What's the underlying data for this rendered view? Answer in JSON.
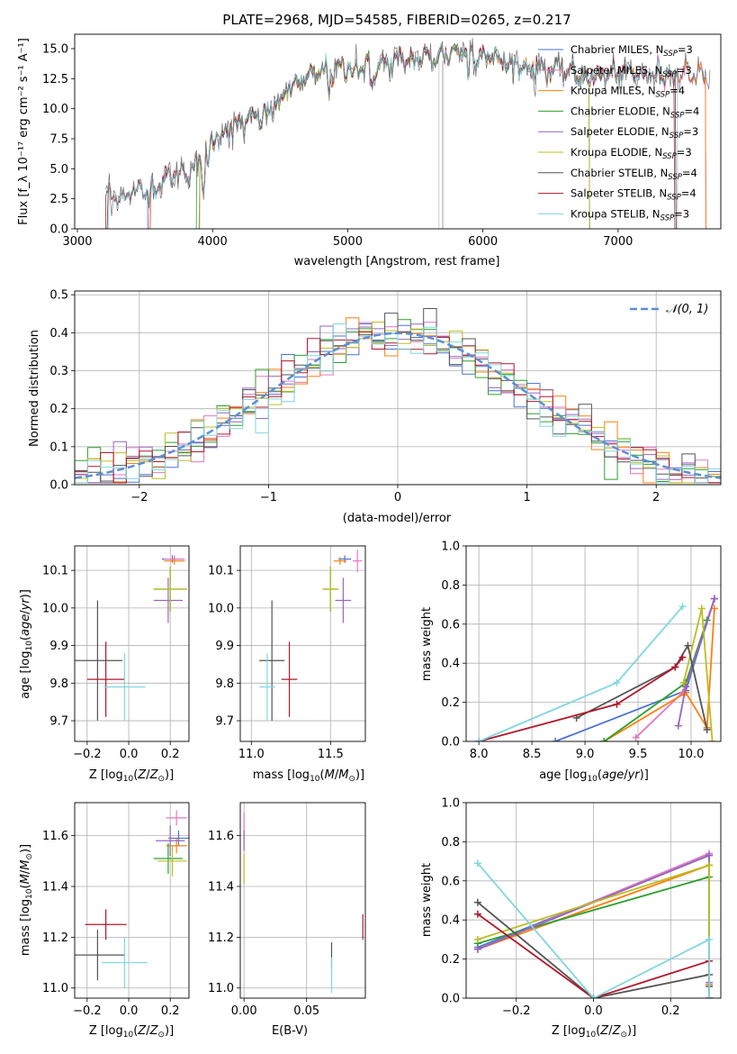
{
  "colors": {
    "chabrier_miles": "#4c72cf",
    "salpeter_miles": "#e377c2",
    "kroupa_miles": "#ff7f0e",
    "chabrier_elodie": "#2ca02c",
    "salpeter_elodie": "#9467bd",
    "kroupa_elodie": "#bcbd22",
    "chabrier_stelib": "#555555",
    "salpeter_stelib": "#b2182b",
    "kroupa_stelib": "#80d6e0",
    "gauss": "#5b8fd6"
  },
  "chart_data": [
    {
      "id": "spectrum",
      "type": "line",
      "title": "PLATE=2968, MJD=54585, FIBERID=0265, z=0.217",
      "xlabel": "wavelength [Angstrom, rest frame]",
      "ylabel": "Flux [f_λ 10⁻¹⁷ erg cm⁻² s⁻¹ A⁻¹]",
      "xlim": [
        2980,
        7760
      ],
      "ylim": [
        0,
        16.2
      ],
      "xticks": [
        "3000",
        "4000",
        "5000",
        "6000",
        "7000"
      ],
      "yticks": [
        "0.0",
        "2.5",
        "5.0",
        "7.5",
        "10.0",
        "12.5",
        "15.0"
      ],
      "series": [
        {
          "name": "Chabrier MILES, N_SSP=3"
        },
        {
          "name": "Salpeter MILES, N_SSP=3"
        },
        {
          "name": "Kroupa MILES, N_SSP=4"
        },
        {
          "name": "Chabrier ELODIE, N_SSP=4"
        },
        {
          "name": "Salpeter ELODIE, N_SSP=3"
        },
        {
          "name": "Kroupa ELODIE, N_SSP=3"
        },
        {
          "name": "Chabrier STELIB, N_SSP=4"
        },
        {
          "name": "Salpeter STELIB, N_SSP=4"
        },
        {
          "name": "Kroupa STELIB, N_SSP=3"
        }
      ],
      "continuum": {
        "x": [
          3200,
          3300,
          3500,
          3700,
          3900,
          4000,
          4200,
          4400,
          4600,
          4800,
          5000,
          5200,
          5400,
          5600,
          5800,
          6000,
          6200,
          6400,
          6600,
          6800,
          7000,
          7200,
          7400,
          7600
        ],
        "y": [
          2.5,
          2.8,
          3.2,
          4.4,
          5.2,
          7.6,
          8.7,
          9.5,
          12.0,
          13.0,
          13.4,
          13.5,
          13.9,
          14.2,
          14.8,
          14.6,
          13.6,
          13.4,
          13.2,
          12.6,
          13.0,
          12.8,
          13.0,
          12.9
        ]
      },
      "legend": "right"
    },
    {
      "id": "residuals",
      "type": "line",
      "xlabel": "(data-model)/error",
      "ylabel": "Normed distribution",
      "xlim": [
        -2.5,
        2.5
      ],
      "ylim": [
        0,
        0.51
      ],
      "xticks": [
        "−2",
        "−1",
        "0",
        "1",
        "2"
      ],
      "yticks": [
        "0.0",
        "0.1",
        "0.2",
        "0.3",
        "0.4",
        "0.5"
      ],
      "gauss_label": "𝒩(0, 1)",
      "grid": true,
      "legend": "top-right"
    },
    {
      "id": "age-vs-Z",
      "type": "scatter",
      "xlabel": "Z [log10(Z/Z⊙)]",
      "ylabel": "age [log10(age/yr)]",
      "xlim": [
        -0.26,
        0.29
      ],
      "ylim": [
        9.645,
        10.165
      ],
      "xticks": [
        "−0.2",
        "0.0",
        "0.2"
      ],
      "yticks": [
        "9.7",
        "9.8",
        "9.9",
        "10.0",
        "10.1"
      ],
      "grid": true,
      "points": [
        {
          "s": "chabrier_miles",
          "x": 0.21,
          "y": 10.13,
          "dx": 0.05,
          "dy": 0.01
        },
        {
          "s": "salpeter_miles",
          "x": 0.22,
          "y": 10.13,
          "dx": 0.05,
          "dy": 0.01
        },
        {
          "s": "kroupa_miles",
          "x": 0.22,
          "y": 10.125,
          "dx": 0.05,
          "dy": 0.01
        },
        {
          "s": "chabrier_elodie",
          "x": 0.2,
          "y": 10.05,
          "dx": 0.08,
          "dy": 0.06
        },
        {
          "s": "salpeter_elodie",
          "x": 0.19,
          "y": 10.02,
          "dx": 0.07,
          "dy": 0.06
        },
        {
          "s": "kroupa_elodie",
          "x": 0.2,
          "y": 10.05,
          "dx": 0.08,
          "dy": 0.06
        },
        {
          "s": "chabrier_stelib",
          "x": -0.15,
          "y": 9.86,
          "dx": 0.12,
          "dy": 0.16
        },
        {
          "s": "salpeter_stelib",
          "x": -0.11,
          "y": 9.81,
          "dx": 0.09,
          "dy": 0.1
        },
        {
          "s": "kroupa_stelib",
          "x": -0.02,
          "y": 9.79,
          "dx": 0.1,
          "dy": 0.09
        }
      ]
    },
    {
      "id": "age-vs-mass",
      "type": "scatter",
      "xlabel": "mass [log10(M/M⊙)]",
      "ylabel": "",
      "xlim": [
        10.93,
        11.72
      ],
      "ylim": [
        9.645,
        10.165
      ],
      "xticks": [
        "11.0",
        "11.5"
      ],
      "yticks": [
        "9.7",
        "9.8",
        "9.9",
        "10.0",
        "10.1"
      ],
      "grid": true,
      "points": [
        {
          "s": "chabrier_miles",
          "x": 11.59,
          "y": 10.13,
          "dx": 0.04,
          "dy": 0.01
        },
        {
          "s": "salpeter_miles",
          "x": 11.67,
          "y": 10.125,
          "dx": 0.03,
          "dy": 0.03
        },
        {
          "s": "kroupa_miles",
          "x": 11.56,
          "y": 10.125,
          "dx": 0.04,
          "dy": 0.01
        },
        {
          "s": "chabrier_elodie",
          "x": 11.5,
          "y": 10.05,
          "dx": 0.05,
          "dy": 0.06
        },
        {
          "s": "salpeter_elodie",
          "x": 11.58,
          "y": 10.02,
          "dx": 0.05,
          "dy": 0.06
        },
        {
          "s": "kroupa_elodie",
          "x": 11.5,
          "y": 10.05,
          "dx": 0.05,
          "dy": 0.06
        },
        {
          "s": "chabrier_stelib",
          "x": 11.13,
          "y": 9.86,
          "dx": 0.08,
          "dy": 0.16
        },
        {
          "s": "salpeter_stelib",
          "x": 11.24,
          "y": 9.81,
          "dx": 0.05,
          "dy": 0.1
        },
        {
          "s": "kroupa_stelib",
          "x": 11.1,
          "y": 9.79,
          "dx": 0.05,
          "dy": 0.09
        }
      ]
    },
    {
      "id": "weight-vs-age",
      "type": "line",
      "xlabel": "age [log10(age/yr)]",
      "ylabel": "mass weight",
      "xlim": [
        7.88,
        10.28
      ],
      "ylim": [
        0,
        1.0
      ],
      "xticks": [
        "8.0",
        "8.5",
        "9.0",
        "9.5",
        "10.0"
      ],
      "yticks": [
        "0.0",
        "0.2",
        "0.4",
        "0.6",
        "0.8",
        "1.0"
      ],
      "grid": true,
      "series": [
        {
          "s": "chabrier_miles",
          "x": [
            8.72,
            9.95,
            10.22
          ],
          "y": [
            0.0,
            0.26,
            0.73
          ]
        },
        {
          "s": "salpeter_miles",
          "x": [
            9.48,
            9.92,
            10.22
          ],
          "y": [
            0.02,
            0.25,
            0.73
          ]
        },
        {
          "s": "kroupa_miles",
          "x": [
            9.18,
            9.95,
            10.15,
            10.22
          ],
          "y": [
            0.0,
            0.25,
            0.07,
            0.68
          ]
        },
        {
          "s": "chabrier_elodie",
          "x": [
            9.18,
            9.95,
            10.15
          ],
          "y": [
            0.0,
            0.3,
            0.62
          ]
        },
        {
          "s": "salpeter_elodie",
          "x": [
            9.88,
            9.95,
            10.22
          ],
          "y": [
            0.08,
            0.28,
            0.73
          ]
        },
        {
          "s": "kroupa_elodie",
          "x": [
            9.93,
            10.1,
            10.2
          ],
          "y": [
            0.3,
            0.68,
            0.0
          ]
        },
        {
          "s": "chabrier_stelib",
          "x": [
            8.92,
            9.85,
            9.97,
            10.15
          ],
          "y": [
            0.12,
            0.38,
            0.49,
            0.06
          ]
        },
        {
          "s": "salpeter_stelib",
          "x": [
            8.0,
            9.3,
            9.85,
            9.92
          ],
          "y": [
            0.0,
            0.19,
            0.38,
            0.43
          ]
        },
        {
          "s": "kroupa_stelib",
          "x": [
            8.0,
            9.3,
            9.92
          ],
          "y": [
            0.0,
            0.3,
            0.69
          ]
        }
      ]
    },
    {
      "id": "mass-vs-Z",
      "type": "scatter",
      "xlabel": "Z [log10(Z/Z⊙)]",
      "ylabel": "mass [log10(M/M⊙)]",
      "xlim": [
        -0.26,
        0.29
      ],
      "ylim": [
        10.96,
        11.73
      ],
      "xticks": [
        "−0.2",
        "0.0",
        "0.2"
      ],
      "yticks": [
        "11.0",
        "11.2",
        "11.4",
        "11.6"
      ],
      "grid": true,
      "points": [
        {
          "s": "chabrier_miles",
          "x": 0.24,
          "y": 11.59,
          "dx": 0.05,
          "dy": 0.03
        },
        {
          "s": "salpeter_miles",
          "x": 0.23,
          "y": 11.67,
          "dx": 0.05,
          "dy": 0.03
        },
        {
          "s": "kroupa_miles",
          "x": 0.23,
          "y": 11.56,
          "dx": 0.05,
          "dy": 0.03
        },
        {
          "s": "chabrier_elodie",
          "x": 0.19,
          "y": 11.51,
          "dx": 0.07,
          "dy": 0.06
        },
        {
          "s": "salpeter_elodie",
          "x": 0.2,
          "y": 11.58,
          "dx": 0.07,
          "dy": 0.06
        },
        {
          "s": "kroupa_elodie",
          "x": 0.21,
          "y": 11.5,
          "dx": 0.07,
          "dy": 0.06
        },
        {
          "s": "chabrier_stelib",
          "x": -0.15,
          "y": 11.13,
          "dx": 0.13,
          "dy": 0.1
        },
        {
          "s": "salpeter_stelib",
          "x": -0.11,
          "y": 11.25,
          "dx": 0.1,
          "dy": 0.06
        },
        {
          "s": "kroupa_stelib",
          "x": -0.02,
          "y": 11.1,
          "dx": 0.11,
          "dy": 0.1
        }
      ]
    },
    {
      "id": "mass-vs-ebv",
      "type": "scatter",
      "xlabel": "E(B-V)",
      "ylabel": "",
      "xlim": [
        -0.003,
        0.097
      ],
      "ylim": [
        10.96,
        11.73
      ],
      "xticks": [
        "0.00",
        "0.05"
      ],
      "yticks": [
        "11.0",
        "11.2",
        "11.4",
        "11.6"
      ],
      "grid": true,
      "points": [
        {
          "s": "salpeter_miles",
          "x": 0.0,
          "y": 11.64,
          "dx": 0.0003,
          "dy": 0.05
        },
        {
          "s": "salpeter_elodie",
          "x": 0.0,
          "y": 11.58,
          "dx": 0.0003,
          "dy": 0.04
        },
        {
          "s": "kroupa_elodie",
          "x": 0.0,
          "y": 11.47,
          "dx": 0.0003,
          "dy": 0.06
        },
        {
          "s": "chabrier_stelib",
          "x": 0.07,
          "y": 11.13,
          "dx": 0.0003,
          "dy": 0.05
        },
        {
          "s": "kroupa_stelib",
          "x": 0.07,
          "y": 11.05,
          "dx": 0.0003,
          "dy": 0.07
        },
        {
          "s": "salpeter_stelib",
          "x": 0.095,
          "y": 11.24,
          "dx": 0.0003,
          "dy": 0.05
        }
      ]
    },
    {
      "id": "weight-vs-Z",
      "type": "line",
      "xlabel": "Z [log10(Z/Z⊙)]",
      "ylabel": "mass weight",
      "xlim": [
        -0.33,
        0.33
      ],
      "ylim": [
        0,
        1.0
      ],
      "xticks": [
        "−0.2",
        "0.0",
        "0.2"
      ],
      "yticks": [
        "0.0",
        "0.2",
        "0.4",
        "0.6",
        "0.8",
        "1.0"
      ],
      "grid": true,
      "series": [
        {
          "s": "chabrier_miles",
          "x": [
            -0.3,
            0.3,
            0.3
          ],
          "y": [
            0.26,
            0.73,
            0.0
          ]
        },
        {
          "s": "salpeter_miles",
          "x": [
            -0.3,
            0.3,
            0.3
          ],
          "y": [
            0.25,
            0.74,
            0.0
          ]
        },
        {
          "s": "kroupa_miles",
          "x": [
            -0.3,
            0.3,
            0.3
          ],
          "y": [
            0.25,
            0.68,
            0.07
          ]
        },
        {
          "s": "chabrier_elodie",
          "x": [
            -0.3,
            0.3,
            0.3
          ],
          "y": [
            0.28,
            0.62,
            0.0
          ]
        },
        {
          "s": "salpeter_elodie",
          "x": [
            -0.3,
            0.3,
            0.3
          ],
          "y": [
            0.25,
            0.73,
            0.08
          ]
        },
        {
          "s": "kroupa_elodie",
          "x": [
            -0.3,
            0.3,
            0.3
          ],
          "y": [
            0.3,
            0.68,
            0.0
          ]
        },
        {
          "s": "chabrier_stelib",
          "x": [
            -0.3,
            0.0,
            0.3,
            0.3
          ],
          "y": [
            0.49,
            0.0,
            0.12,
            0.06
          ]
        },
        {
          "s": "salpeter_stelib",
          "x": [
            -0.3,
            0.0,
            0.3,
            0.3
          ],
          "y": [
            0.43,
            0.0,
            0.19,
            0.0
          ]
        },
        {
          "s": "kroupa_stelib",
          "x": [
            -0.3,
            0.0,
            0.3,
            0.3
          ],
          "y": [
            0.69,
            0.0,
            0.3,
            0.0
          ]
        }
      ]
    }
  ]
}
